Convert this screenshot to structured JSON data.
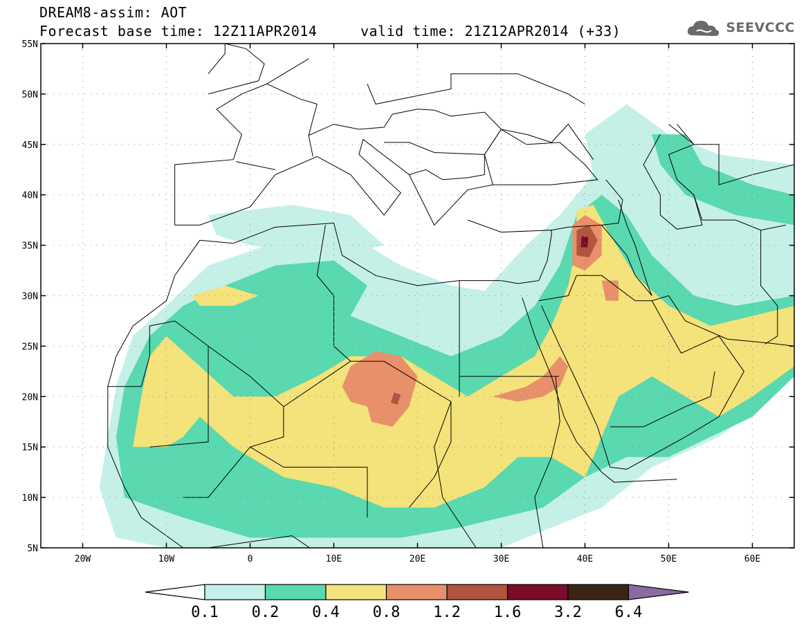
{
  "header": {
    "line1": "DREAM8-assim: AOT",
    "line2": "Forecast base time: 12Z11APR2014     valid time: 21Z12APR2014 (+33)"
  },
  "logo": {
    "text": "SEEVCCC",
    "icon": "cloud-icon",
    "color": "#6a6a6a"
  },
  "map": {
    "lon_range": [
      -25,
      65
    ],
    "lat_range": [
      5,
      55
    ],
    "lon_ticks": [
      {
        "value": -20,
        "label": "20W"
      },
      {
        "value": -10,
        "label": "10W"
      },
      {
        "value": 0,
        "label": "0"
      },
      {
        "value": 10,
        "label": "10E"
      },
      {
        "value": 20,
        "label": "20E"
      },
      {
        "value": 30,
        "label": "30E"
      },
      {
        "value": 40,
        "label": "40E"
      },
      {
        "value": 50,
        "label": "50E"
      },
      {
        "value": 60,
        "label": "60E"
      }
    ],
    "lat_ticks": [
      {
        "value": 55,
        "label": "55N"
      },
      {
        "value": 50,
        "label": "50N"
      },
      {
        "value": 45,
        "label": "45N"
      },
      {
        "value": 40,
        "label": "40N"
      },
      {
        "value": 35,
        "label": "35N"
      },
      {
        "value": 30,
        "label": "30N"
      },
      {
        "value": 25,
        "label": "25N"
      },
      {
        "value": 20,
        "label": "20N"
      },
      {
        "value": 15,
        "label": "15N"
      },
      {
        "value": 10,
        "label": "10N"
      },
      {
        "value": 5,
        "label": "5N"
      }
    ]
  },
  "colorbar": {
    "boundaries": [
      "0.1",
      "0.2",
      "0.4",
      "0.8",
      "1.2",
      "1.6",
      "3.2",
      "6.4"
    ],
    "colors": [
      "#c4f0e8",
      "#5ad8b0",
      "#f4e27a",
      "#e8906a",
      "#b0553e",
      "#7c0a2a",
      "#3c2414"
    ],
    "low_color": "#ffffff",
    "high_color": "#8a6aa0"
  },
  "palette": {
    "low": "#c4f0e8",
    "mid": "#5ad8b0",
    "yellow": "#f4e27a",
    "orange": "#e8906a",
    "brown": "#b0553e",
    "dark": "#7c0a2a"
  }
}
